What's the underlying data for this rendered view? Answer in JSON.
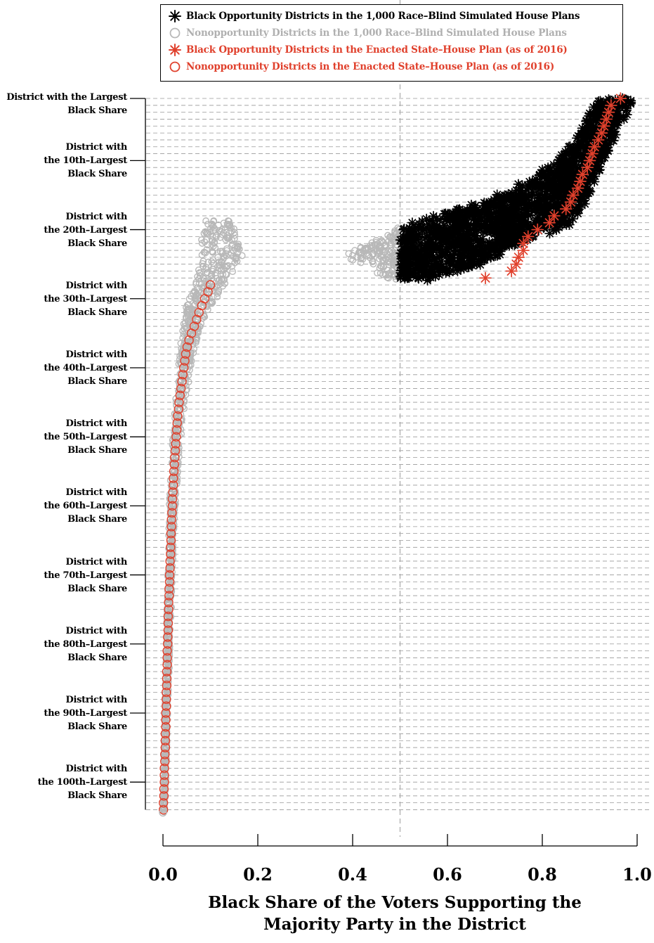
{
  "chart_data": {
    "type": "scatter",
    "title": "",
    "xlabel_lines": [
      "Black Share of the Voters Supporting the",
      "Majority Party in the District"
    ],
    "ylabel": "",
    "xlim": [
      0,
      1
    ],
    "x_ticks": [
      "0.0",
      "0.2",
      "0.4",
      "0.6",
      "0.8",
      "1.0"
    ],
    "reference_line_x": 0.5,
    "grid": "horizontal dashed gridline at every district rank",
    "y_rank_range": [
      1,
      104
    ],
    "y_tick_labels": [
      {
        "rank": 1,
        "lines": [
          "District with the Largest",
          "Black Share"
        ]
      },
      {
        "rank": 10,
        "lines": [
          "District with",
          "the 10th–Largest",
          "Black Share"
        ]
      },
      {
        "rank": 20,
        "lines": [
          "District with",
          "the 20th–Largest",
          "Black Share"
        ]
      },
      {
        "rank": 30,
        "lines": [
          "District with",
          "the 30th–Largest",
          "Black Share"
        ]
      },
      {
        "rank": 40,
        "lines": [
          "District with",
          "the 40th–Largest",
          "Black Share"
        ]
      },
      {
        "rank": 50,
        "lines": [
          "District with",
          "the 50th–Largest",
          "Black Share"
        ]
      },
      {
        "rank": 60,
        "lines": [
          "District with",
          "the 60th–Largest",
          "Black Share"
        ]
      },
      {
        "rank": 70,
        "lines": [
          "District with",
          "the 70th–Largest",
          "Black Share"
        ]
      },
      {
        "rank": 80,
        "lines": [
          "District with",
          "the 80th–Largest",
          "Black Share"
        ]
      },
      {
        "rank": 90,
        "lines": [
          "District with",
          "the 90th–Largest",
          "Black Share"
        ]
      },
      {
        "rank": 100,
        "lines": [
          "District with",
          "the 100th–Largest",
          "Black Share"
        ]
      }
    ],
    "legend_position": "top",
    "legend": [
      {
        "symbol": "asterisk",
        "color": "#000000",
        "label": "Black Opportunity Districts in the 1,000 Race–Blind Simulated House Plans"
      },
      {
        "symbol": "circle",
        "color": "#b8b8b8",
        "label": "Nonopportunity Districts in the 1,000 Race–Blind Simulated House Plans"
      },
      {
        "symbol": "asterisk",
        "color": "#e0402c",
        "label": "Black Opportunity Districts in the Enacted State–House Plan (as of 2016)"
      },
      {
        "symbol": "circle",
        "color": "#e0402c",
        "label": "Nonopportunity Districts in the Enacted State–House Plan (as of 2016)"
      }
    ],
    "simulated_range_by_rank": [
      {
        "rank": 1,
        "min": 0.92,
        "max": 0.99
      },
      {
        "rank": 3,
        "min": 0.9,
        "max": 0.98
      },
      {
        "rank": 6,
        "min": 0.88,
        "max": 0.96
      },
      {
        "rank": 10,
        "min": 0.83,
        "max": 0.93
      },
      {
        "rank": 13,
        "min": 0.77,
        "max": 0.91
      },
      {
        "rank": 16,
        "min": 0.68,
        "max": 0.89
      },
      {
        "rank": 19,
        "min": 0.52,
        "max": 0.86
      },
      {
        "rank": 21,
        "min": 0.47,
        "max": 0.79
      },
      {
        "rank": 22,
        "min": 0.44,
        "max": 0.75
      },
      {
        "rank": 23,
        "min": 0.4,
        "max": 0.72
      },
      {
        "rank": 24,
        "min": 0.38,
        "max": 0.7
      },
      {
        "rank": 25,
        "min": 0.45,
        "max": 0.66
      },
      {
        "rank": 26,
        "min": 0.45,
        "max": 0.62
      },
      {
        "rank": 27,
        "min": 0.47,
        "max": 0.58
      }
    ],
    "simulated_opportunity_threshold": 0.5,
    "simulated_nonopportunity_by_rank": [
      {
        "rank": 19,
        "min": 0.09,
        "max": 0.14
      },
      {
        "rank": 21,
        "min": 0.08,
        "max": 0.16
      },
      {
        "rank": 23,
        "min": 0.08,
        "max": 0.17
      },
      {
        "rank": 25,
        "min": 0.08,
        "max": 0.16
      },
      {
        "rank": 27,
        "min": 0.07,
        "max": 0.14
      },
      {
        "rank": 29,
        "min": 0.06,
        "max": 0.12
      },
      {
        "rank": 31,
        "min": 0.05,
        "max": 0.1
      },
      {
        "rank": 33,
        "min": 0.045,
        "max": 0.085
      },
      {
        "rank": 35,
        "min": 0.04,
        "max": 0.075
      },
      {
        "rank": 38,
        "min": 0.035,
        "max": 0.065
      },
      {
        "rank": 42,
        "min": 0.03,
        "max": 0.055
      },
      {
        "rank": 46,
        "min": 0.025,
        "max": 0.045
      },
      {
        "rank": 50,
        "min": 0.02,
        "max": 0.038
      },
      {
        "rank": 60,
        "min": 0.013,
        "max": 0.026
      },
      {
        "rank": 70,
        "min": 0.01,
        "max": 0.02
      },
      {
        "rank": 80,
        "min": 0.007,
        "max": 0.015
      },
      {
        "rank": 90,
        "min": 0.004,
        "max": 0.01
      },
      {
        "rank": 100,
        "min": 0.001,
        "max": 0.006
      },
      {
        "rank": 104,
        "min": 0.0,
        "max": 0.003
      }
    ],
    "enacted_by_rank": [
      {
        "rank": 1,
        "x": 0.965
      },
      {
        "rank": 2,
        "x": 0.945
      },
      {
        "rank": 3,
        "x": 0.94
      },
      {
        "rank": 4,
        "x": 0.935
      },
      {
        "rank": 5,
        "x": 0.93
      },
      {
        "rank": 6,
        "x": 0.925
      },
      {
        "rank": 7,
        "x": 0.918
      },
      {
        "rank": 8,
        "x": 0.91
      },
      {
        "rank": 9,
        "x": 0.905
      },
      {
        "rank": 10,
        "x": 0.9
      },
      {
        "rank": 11,
        "x": 0.895
      },
      {
        "rank": 12,
        "x": 0.885
      },
      {
        "rank": 13,
        "x": 0.88
      },
      {
        "rank": 14,
        "x": 0.875
      },
      {
        "rank": 15,
        "x": 0.865
      },
      {
        "rank": 16,
        "x": 0.86
      },
      {
        "rank": 17,
        "x": 0.85
      },
      {
        "rank": 18,
        "x": 0.825
      },
      {
        "rank": 19,
        "x": 0.815
      },
      {
        "rank": 20,
        "x": 0.79
      },
      {
        "rank": 21,
        "x": 0.77
      },
      {
        "rank": 22,
        "x": 0.76
      },
      {
        "rank": 23,
        "x": 0.76
      },
      {
        "rank": 24,
        "x": 0.75
      },
      {
        "rank": 25,
        "x": 0.745
      },
      {
        "rank": 26,
        "x": 0.735
      },
      {
        "rank": 27,
        "x": 0.68
      },
      {
        "rank": 28,
        "x": 0.1
      },
      {
        "rank": 29,
        "x": 0.095
      },
      {
        "rank": 30,
        "x": 0.088
      },
      {
        "rank": 31,
        "x": 0.082
      },
      {
        "rank": 32,
        "x": 0.076
      },
      {
        "rank": 33,
        "x": 0.071
      },
      {
        "rank": 34,
        "x": 0.066
      },
      {
        "rank": 35,
        "x": 0.06
      },
      {
        "rank": 36,
        "x": 0.055
      },
      {
        "rank": 37,
        "x": 0.051
      },
      {
        "rank": 38,
        "x": 0.048
      },
      {
        "rank": 39,
        "x": 0.046
      },
      {
        "rank": 40,
        "x": 0.044
      },
      {
        "rank": 41,
        "x": 0.042
      },
      {
        "rank": 42,
        "x": 0.04
      },
      {
        "rank": 43,
        "x": 0.038
      },
      {
        "rank": 44,
        "x": 0.036
      },
      {
        "rank": 45,
        "x": 0.034
      },
      {
        "rank": 46,
        "x": 0.033
      },
      {
        "rank": 47,
        "x": 0.031
      },
      {
        "rank": 48,
        "x": 0.03
      },
      {
        "rank": 49,
        "x": 0.029
      },
      {
        "rank": 50,
        "x": 0.028
      },
      {
        "rank": 51,
        "x": 0.027
      },
      {
        "rank": 52,
        "x": 0.026
      },
      {
        "rank": 53,
        "x": 0.025
      },
      {
        "rank": 54,
        "x": 0.024
      },
      {
        "rank": 55,
        "x": 0.023
      },
      {
        "rank": 56,
        "x": 0.022
      },
      {
        "rank": 57,
        "x": 0.022
      },
      {
        "rank": 58,
        "x": 0.021
      },
      {
        "rank": 59,
        "x": 0.02
      },
      {
        "rank": 60,
        "x": 0.02
      },
      {
        "rank": 61,
        "x": 0.019
      },
      {
        "rank": 62,
        "x": 0.018
      },
      {
        "rank": 63,
        "x": 0.018
      },
      {
        "rank": 64,
        "x": 0.017
      },
      {
        "rank": 65,
        "x": 0.017
      },
      {
        "rank": 66,
        "x": 0.016
      },
      {
        "rank": 67,
        "x": 0.016
      },
      {
        "rank": 68,
        "x": 0.015
      },
      {
        "rank": 69,
        "x": 0.015
      },
      {
        "rank": 70,
        "x": 0.014
      },
      {
        "rank": 71,
        "x": 0.014
      },
      {
        "rank": 72,
        "x": 0.013
      },
      {
        "rank": 73,
        "x": 0.013
      },
      {
        "rank": 74,
        "x": 0.012
      },
      {
        "rank": 75,
        "x": 0.012
      },
      {
        "rank": 76,
        "x": 0.011
      },
      {
        "rank": 77,
        "x": 0.011
      },
      {
        "rank": 78,
        "x": 0.011
      },
      {
        "rank": 79,
        "x": 0.01
      },
      {
        "rank": 80,
        "x": 0.01
      },
      {
        "rank": 81,
        "x": 0.009
      },
      {
        "rank": 82,
        "x": 0.009
      },
      {
        "rank": 83,
        "x": 0.009
      },
      {
        "rank": 84,
        "x": 0.008
      },
      {
        "rank": 85,
        "x": 0.008
      },
      {
        "rank": 86,
        "x": 0.008
      },
      {
        "rank": 87,
        "x": 0.007
      },
      {
        "rank": 88,
        "x": 0.007
      },
      {
        "rank": 89,
        "x": 0.007
      },
      {
        "rank": 90,
        "x": 0.006
      },
      {
        "rank": 91,
        "x": 0.006
      },
      {
        "rank": 92,
        "x": 0.006
      },
      {
        "rank": 93,
        "x": 0.005
      },
      {
        "rank": 94,
        "x": 0.005
      },
      {
        "rank": 95,
        "x": 0.005
      },
      {
        "rank": 96,
        "x": 0.004
      },
      {
        "rank": 97,
        "x": 0.004
      },
      {
        "rank": 98,
        "x": 0.003
      },
      {
        "rank": 99,
        "x": 0.003
      },
      {
        "rank": 100,
        "x": 0.003
      },
      {
        "rank": 101,
        "x": 0.002
      },
      {
        "rank": 102,
        "x": 0.002
      },
      {
        "rank": 103,
        "x": 0.001
      },
      {
        "rank": 104,
        "x": 0.001
      }
    ],
    "enacted_opportunity_threshold": 0.5
  },
  "colors": {
    "simulated_opportunity": "#000000",
    "simulated_nonopportunity": "#b8b8b8",
    "enacted": "#e0402c",
    "grid": "#999999",
    "reference_line": "#aaaaaa"
  }
}
